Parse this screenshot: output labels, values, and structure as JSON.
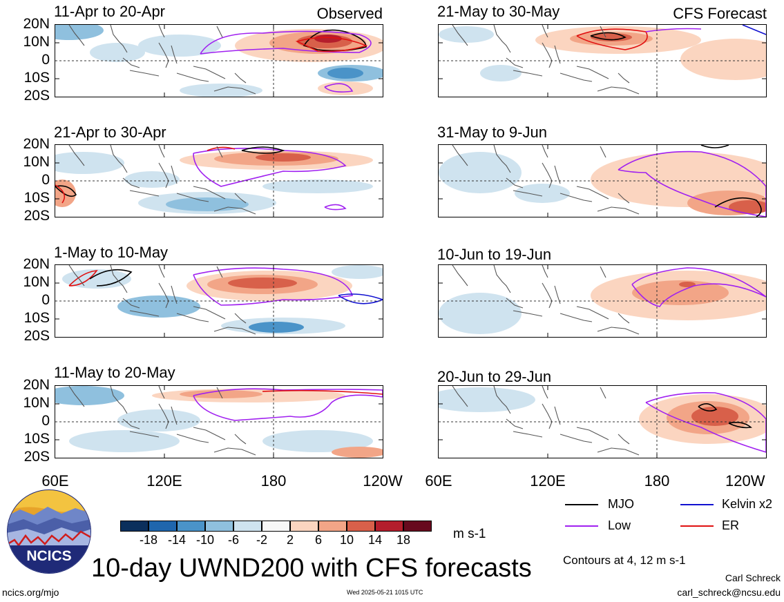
{
  "figure": {
    "title": "10-day UWND200 with CFS forecasts",
    "units": "m s-1",
    "observed_label": "Observed",
    "forecast_label": "CFS Forecast",
    "contour_note": "Contours at 4, 12 m s-1",
    "author": "Carl Schreck",
    "email": "carl_schreck@ncsu.edu",
    "site": "ncics.org/mjo",
    "timestamp": "Wed 2025-05-21 1015 UTC",
    "logo_text": "NCICS"
  },
  "panels": [
    {
      "title": "11-Apr to 20-Apr",
      "kind": "observed"
    },
    {
      "title": "21-Apr to 30-Apr",
      "kind": "observed"
    },
    {
      "title": "1-May to 10-May",
      "kind": "observed"
    },
    {
      "title": "11-May to 20-May",
      "kind": "observed"
    },
    {
      "title": "21-May to 30-May",
      "kind": "forecast"
    },
    {
      "title": "31-May to 9-Jun",
      "kind": "forecast"
    },
    {
      "title": "10-Jun to 19-Jun",
      "kind": "forecast"
    },
    {
      "title": "20-Jun to 29-Jun",
      "kind": "forecast"
    }
  ],
  "lat_labels": [
    "20N",
    "10N",
    "0",
    "10S",
    "20S"
  ],
  "lon_labels": [
    "60E",
    "120E",
    "180",
    "120W"
  ],
  "colorbar": {
    "labels": [
      "-18",
      "-14",
      "-10",
      "-6",
      "-2",
      "2",
      "6",
      "10",
      "14",
      "18"
    ],
    "colors": [
      "#0b2f5c",
      "#1f66ad",
      "#4a93c8",
      "#8fc0de",
      "#cfe3ef",
      "#f7f7f7",
      "#fbd5c0",
      "#f2a587",
      "#d8604a",
      "#b41e2c",
      "#670a1e"
    ]
  },
  "legend": [
    {
      "label": "MJO",
      "color": "#000000"
    },
    {
      "label": "Kelvin x2",
      "color": "#1010d0"
    },
    {
      "label": "Low",
      "color": "#a020f0"
    },
    {
      "label": "ER",
      "color": "#e01010"
    }
  ],
  "colors": {
    "mjo": "#000000",
    "kelvin": "#1010d0",
    "low": "#a020f0",
    "er": "#e01010"
  }
}
